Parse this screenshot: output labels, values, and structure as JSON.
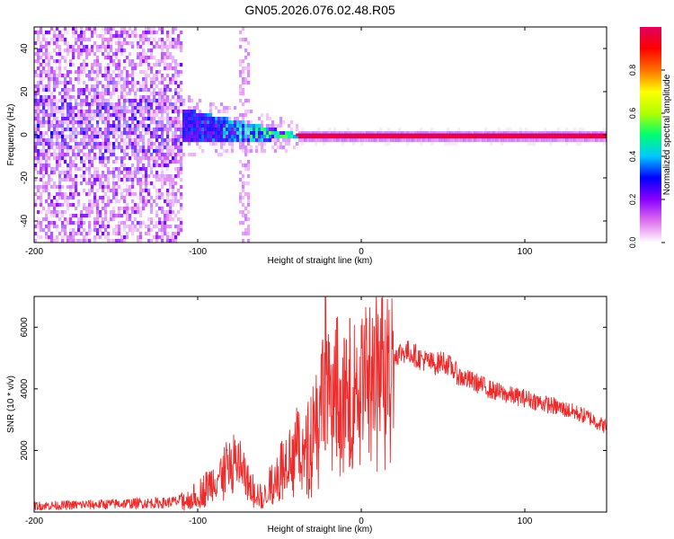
{
  "title": "GN05.2026.076.02.48.R05",
  "chart_data": [
    {
      "type": "heatmap",
      "xlabel": "Height of straight line (km)",
      "ylabel": "Frequency (Hz)",
      "xlim": [
        -200,
        150
      ],
      "ylim": [
        -50,
        50
      ],
      "xticks": [
        -200,
        -100,
        0,
        100
      ],
      "yticks": [
        -40,
        -20,
        0,
        20,
        40
      ],
      "colorbar": {
        "label": "Normalized spectral amplitude",
        "range": [
          0.0,
          1.0
        ],
        "ticks": [
          "0.0",
          "0.2",
          "0.4",
          "0.6",
          "0.8"
        ],
        "colors": [
          "#ffffff",
          "#e070f0",
          "#8a00ff",
          "#0000ff",
          "#00c8ff",
          "#00ff70",
          "#b0ff00",
          "#ffff00",
          "#ff7000",
          "#ff0000",
          "#e00060"
        ]
      },
      "features": {
        "noise_region_km": [
          -200,
          -110
        ],
        "scattered_column_km": -72,
        "carrier_frequency_hz": 0,
        "carrier_start_km": -40,
        "peak_amplitude": 1.0
      }
    },
    {
      "type": "line",
      "xlabel": "Height of straight line (km)",
      "ylabel": "SNR (10 * v/v)",
      "xlim": [
        -200,
        150
      ],
      "ylim": [
        0,
        7000
      ],
      "xticks": [
        -200,
        -100,
        0,
        100
      ],
      "yticks": [
        2000,
        4000,
        6000
      ],
      "color": "#ee2a2a",
      "series": [
        {
          "x": [
            -200,
            -180,
            -160,
            -140,
            -120,
            -105,
            -95,
            -85,
            -80,
            -75,
            -70,
            -65,
            -60,
            -55,
            -50,
            -45,
            -40,
            -35,
            -30,
            -25,
            -22,
            -20,
            -18,
            -15,
            -12,
            -10,
            -8,
            -5,
            -2,
            0,
            5,
            10,
            15,
            20,
            25,
            30,
            35,
            40,
            45,
            50,
            55,
            60,
            70,
            80,
            90,
            100,
            110,
            120,
            130,
            140,
            150
          ],
          "values": [
            200,
            220,
            250,
            280,
            300,
            400,
            800,
            1300,
            1600,
            1700,
            1000,
            700,
            400,
            1000,
            1500,
            1800,
            2300,
            1800,
            3000,
            3500,
            5000,
            4000,
            3000,
            4500,
            3500,
            4000,
            3500,
            4200,
            4300,
            4300,
            4700,
            4900,
            5100,
            5100,
            5200,
            5200,
            5000,
            4900,
            4800,
            4900,
            4700,
            4400,
            4200,
            3950,
            3800,
            3700,
            3550,
            3400,
            3250,
            3050,
            2750
          ]
        }
      ],
      "spikes": [
        {
          "x": -22,
          "y": 7000
        },
        {
          "x": -15,
          "y": 6300
        },
        {
          "x": -7,
          "y": 6300
        }
      ]
    }
  ]
}
